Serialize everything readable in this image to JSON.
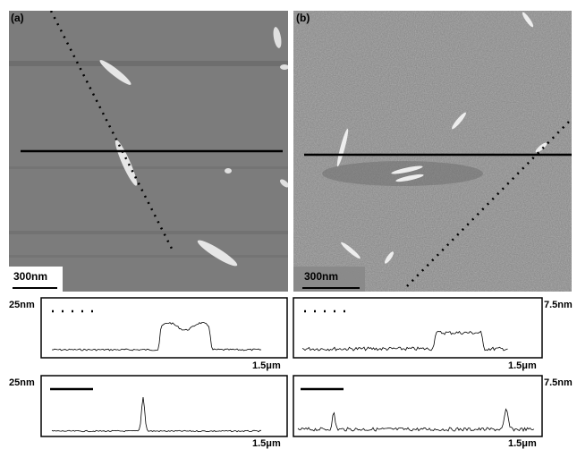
{
  "panels": [
    {
      "label": "(a)",
      "scale_bar": "300nm"
    },
    {
      "label": "(b)",
      "scale_bar": "300nm"
    }
  ],
  "profiles": [
    {
      "y_scale": "25nm",
      "x_scale": "1.5μm"
    },
    {
      "y_scale": "7.5nm",
      "x_scale": "1.5μm"
    },
    {
      "y_scale": "25nm",
      "x_scale": "1.5μm"
    },
    {
      "y_scale": "7.5nm",
      "x_scale": "1.5μm"
    }
  ]
}
